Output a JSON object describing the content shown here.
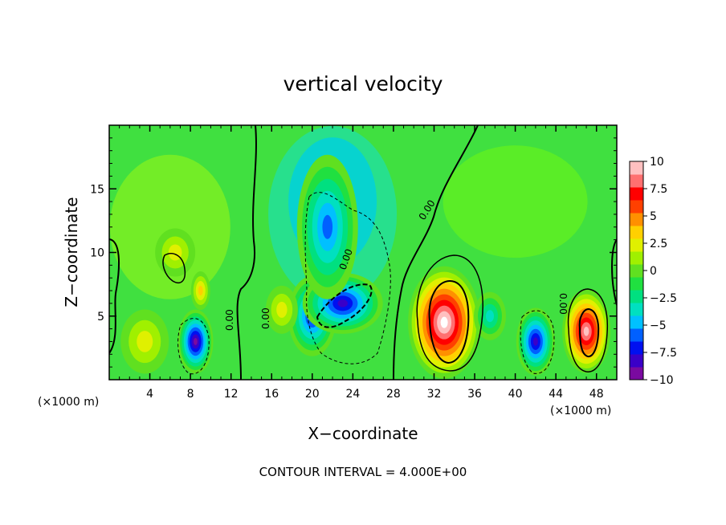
{
  "chart_data": {
    "type": "heatmap",
    "title": "vertical velocity",
    "xlabel": "X−coordinate",
    "ylabel": "Z−coordinate",
    "x_unit_label": "(×1000 m)",
    "xlim": [
      0,
      50
    ],
    "ylim": [
      0,
      20
    ],
    "x_ticks": [
      4,
      8,
      12,
      16,
      20,
      24,
      28,
      32,
      36,
      40,
      44,
      48
    ],
    "y_ticks": [
      5,
      10,
      15
    ],
    "colorbar": {
      "range": [
        -10,
        10
      ],
      "ticks": [
        "10",
        "7.5",
        "5",
        "2.5",
        "0",
        "−2.5",
        "−5",
        "−7.5",
        "−10"
      ],
      "colors": [
        "#7a0aa0",
        "#3a00c8",
        "#0010f0",
        "#0060ff",
        "#00c0ff",
        "#00e0c0",
        "#00e080",
        "#20e040",
        "#60e020",
        "#a0f000",
        "#e0f000",
        "#ffd000",
        "#ff9000",
        "#ff4000",
        "#ff0000",
        "#ff7070",
        "#ffc0c0"
      ]
    },
    "contour_labels": [
      "0.00",
      "0.00",
      "0.00",
      "0.00",
      "0.00"
    ],
    "contour_interval": "CONTOUR INTERVAL =  4.000E+00",
    "cells": [
      {
        "x": 8.5,
        "z": 3.0,
        "w": -10
      },
      {
        "x": 20.0,
        "z": 5.0,
        "w": -8
      },
      {
        "x": 23.0,
        "z": 6.0,
        "w": -9
      },
      {
        "x": 21.5,
        "z": 12.0,
        "w": -6
      },
      {
        "x": 33.0,
        "z": 4.5,
        "w": 11
      },
      {
        "x": 47.0,
        "z": 3.8,
        "w": 10
      },
      {
        "x": 42.0,
        "z": 3.0,
        "w": -9
      },
      {
        "x": 37.5,
        "z": 5.0,
        "w": -4
      },
      {
        "x": 6.5,
        "z": 10.0,
        "w": 2.5
      },
      {
        "x": 9.0,
        "z": 7.0,
        "w": 4
      },
      {
        "x": 17.0,
        "z": 5.5,
        "w": 3
      },
      {
        "x": 3.5,
        "z": 3.0,
        "w": 2
      }
    ]
  }
}
